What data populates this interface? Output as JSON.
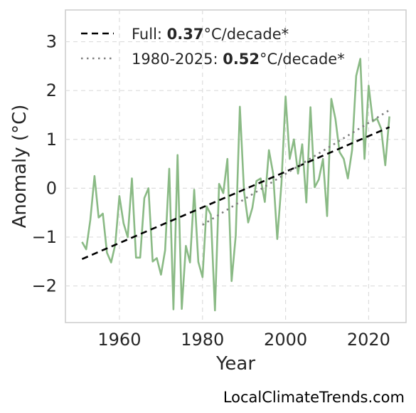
{
  "chart_data": {
    "type": "line",
    "xlabel": "Year",
    "ylabel": "Anomaly (°C)",
    "xlim": [
      1947,
      2029
    ],
    "ylim": [
      -2.75,
      3.65
    ],
    "x_ticks": [
      1960,
      1980,
      2000,
      2020
    ],
    "x_tick_labels": [
      "1960",
      "1980",
      "2000",
      "2020"
    ],
    "y_ticks": [
      -2,
      -1,
      0,
      1,
      2,
      3
    ],
    "y_tick_labels": [
      "−2",
      "−1",
      "0",
      "1",
      "2",
      "3"
    ],
    "grid": true,
    "legend_position": "top-left",
    "series": [
      {
        "color": "#8aba85",
        "style": "solid",
        "x": [
          1951,
          1952,
          1953,
          1954,
          1955,
          1956,
          1957,
          1958,
          1959,
          1960,
          1961,
          1962,
          1963,
          1964,
          1965,
          1966,
          1967,
          1968,
          1969,
          1970,
          1971,
          1972,
          1973,
          1974,
          1975,
          1976,
          1977,
          1978,
          1979,
          1980,
          1981,
          1982,
          1983,
          1984,
          1985,
          1986,
          1987,
          1988,
          1989,
          1990,
          1991,
          1992,
          1993,
          1994,
          1995,
          1996,
          1997,
          1998,
          1999,
          2000,
          2001,
          2002,
          2003,
          2004,
          2005,
          2006,
          2007,
          2008,
          2009,
          2010,
          2011,
          2012,
          2013,
          2014,
          2015,
          2016,
          2017,
          2018,
          2019,
          2020,
          2021,
          2022,
          2023,
          2024,
          2025
        ],
        "values": [
          -1.1,
          -1.25,
          -0.65,
          0.25,
          -0.6,
          -0.52,
          -1.32,
          -1.52,
          -1.15,
          -0.16,
          -0.72,
          -1.0,
          0.2,
          -1.42,
          -1.42,
          -0.2,
          0.0,
          -1.5,
          -1.43,
          -1.77,
          -1.27,
          0.4,
          -2.48,
          0.68,
          -2.47,
          -1.18,
          -1.52,
          -0.03,
          -1.51,
          -1.82,
          -0.37,
          -0.54,
          -2.5,
          0.09,
          -0.1,
          0.6,
          -1.9,
          -0.97,
          1.67,
          -0.07,
          -0.7,
          -0.4,
          0.15,
          0.2,
          -0.28,
          0.78,
          0.3,
          -1.04,
          0.1,
          1.88,
          0.6,
          1.0,
          0.3,
          0.9,
          -0.29,
          1.66,
          0.02,
          0.18,
          0.6,
          -0.57,
          1.83,
          1.42,
          0.74,
          0.6,
          0.2,
          0.78,
          2.3,
          2.65,
          0.6,
          2.1,
          1.37,
          1.43,
          1.22,
          0.47,
          1.47
        ]
      },
      {
        "name": "Full",
        "color": "#000000",
        "style": "dashed",
        "x": [
          1951,
          2025
        ],
        "values": [
          -1.45,
          1.25
        ],
        "rate": "0.37",
        "unit": "°C/decade*"
      },
      {
        "name": "1980-2025",
        "color": "#7f7f7f",
        "style": "dotted",
        "x": [
          1980,
          2025
        ],
        "values": [
          -0.75,
          1.6
        ],
        "rate": "0.52",
        "unit": "°C/decade*"
      }
    ]
  },
  "legend": {
    "full_prefix": "Full: ",
    "full_rate": "0.37",
    "full_unit": "°C/decade*",
    "recent_prefix": "1980-2025: ",
    "recent_rate": "0.52",
    "recent_unit": "°C/decade*"
  },
  "credit": "LocalClimateTrends.com"
}
